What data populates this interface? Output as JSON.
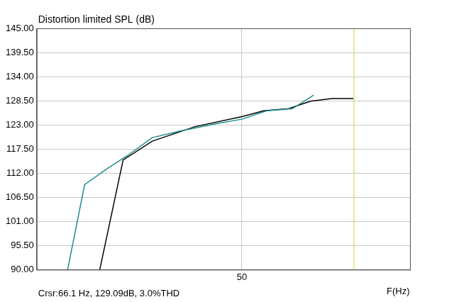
{
  "chart_data": {
    "type": "line",
    "title": "Distortion limited SPL (dB)",
    "x_label": "F(Hz)",
    "annotations": [
      "Crsr:66.1 Hz, 129.09dB, 3.0%THD"
    ],
    "cursor": 66.1,
    "log": "x",
    "grid": true,
    "xlim": [
      30,
      76
    ],
    "xticks": [
      50
    ],
    "ylim": [
      90,
      145
    ],
    "yticks": [
      {
        "value": 90,
        "label": "90.00"
      },
      {
        "value": 95.5,
        "label": "95.50"
      },
      {
        "value": 101,
        "label": "101.00"
      },
      {
        "value": 106.5,
        "label": "106.50"
      },
      {
        "value": 112,
        "label": "112.00"
      },
      {
        "value": 117.5,
        "label": "117.50"
      },
      {
        "value": 123,
        "label": "123.00"
      },
      {
        "value": 128.5,
        "label": "128.50"
      },
      {
        "value": 134,
        "label": "134.00"
      },
      {
        "value": 139.5,
        "label": "139.50"
      },
      {
        "value": 145,
        "label": "145.00"
      }
    ],
    "series": [
      {
        "color": "#1b8c8c",
        "x": [
          32.4,
          33.8,
          35.8,
          37.6,
          40.0,
          42.9,
          47.0,
          50.0,
          53.2,
          56.7,
          59.8
        ],
        "values": [
          90.0,
          109.4,
          113.1,
          116.0,
          120.1,
          121.6,
          123.3,
          124.3,
          126.2,
          126.7,
          129.8
        ]
      },
      {
        "color": "#000000",
        "x": [
          35.1,
          37.2,
          40.0,
          44.5,
          50.0,
          52.8,
          56.2,
          59.3,
          62.6,
          66.1
        ],
        "values": [
          90.0,
          115.0,
          119.3,
          122.6,
          124.9,
          126.2,
          126.7,
          128.4,
          129.0,
          129.0
        ]
      }
    ]
  }
}
